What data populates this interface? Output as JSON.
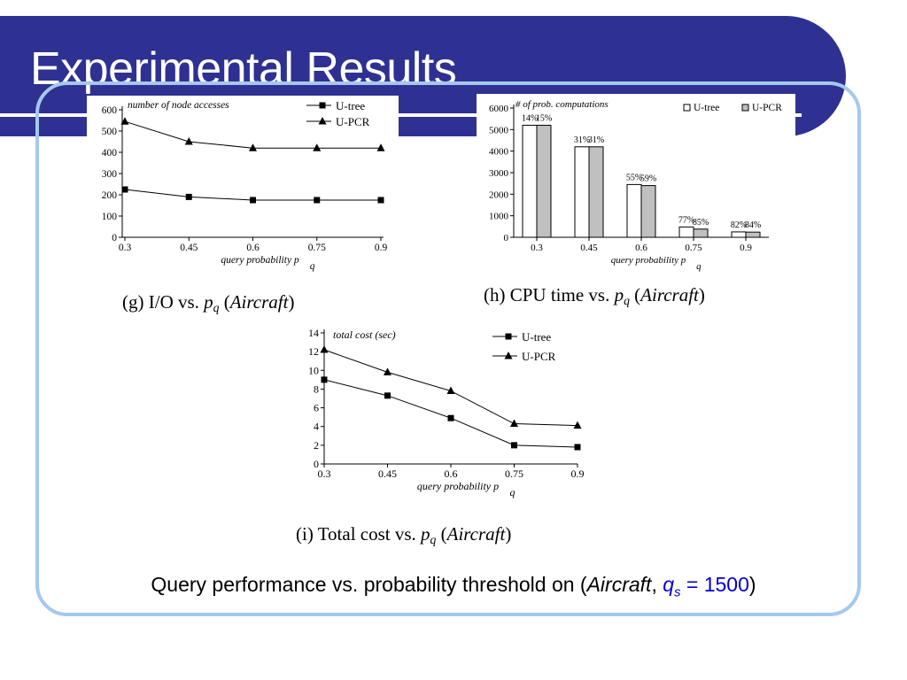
{
  "slide": {
    "title": "Experimental Results",
    "caption_main": "Query performance vs. probability threshold on (",
    "caption_italic": "Aircraft",
    "caption_sep": ", ",
    "caption_var": "q",
    "caption_sub": "s",
    "caption_eq": " = 1500",
    "caption_close": ")",
    "colors": {
      "title_bar": "#2e3192",
      "frame": "#a5c8ef",
      "caption_highlight": "#0000cc"
    }
  },
  "chart_data": [
    {
      "id": "g",
      "type": "line",
      "title": "number of node accesses",
      "caption": "(g) I/O vs. p",
      "caption_sub": "q",
      "caption_italic": "Aircraft",
      "xlabel": "query probability p",
      "xlabel_sub": "q",
      "ylabel": "",
      "categories": [
        "0.3",
        "0.45",
        "0.6",
        "0.75",
        "0.9"
      ],
      "ylim": [
        0,
        600
      ],
      "yticks": [
        0,
        100,
        200,
        300,
        400,
        500,
        600
      ],
      "legend_position": "top-right",
      "series": [
        {
          "name": "U-tree",
          "marker": "square",
          "values": [
            225,
            190,
            175,
            175,
            175
          ]
        },
        {
          "name": "U-PCR",
          "marker": "triangle",
          "values": [
            545,
            450,
            420,
            420,
            420
          ]
        }
      ]
    },
    {
      "id": "h",
      "type": "bar",
      "title": "# of prob. computations",
      "caption": "(h) CPU time vs. p",
      "caption_sub": "q",
      "caption_italic": "Aircraft",
      "xlabel": "query probability p",
      "xlabel_sub": "q",
      "ylabel": "",
      "categories": [
        "0.3",
        "0.45",
        "0.6",
        "0.75",
        "0.9"
      ],
      "ylim": [
        0,
        6000
      ],
      "yticks": [
        0,
        1000,
        2000,
        3000,
        4000,
        5000,
        6000
      ],
      "legend_position": "top-right",
      "series": [
        {
          "name": "U-tree",
          "fill": "#ffffff",
          "values": [
            5200,
            4200,
            2450,
            480,
            250
          ],
          "labels": [
            "14%",
            "31%",
            "55%",
            "77%",
            "82%"
          ]
        },
        {
          "name": "U-PCR",
          "fill": "#c0c0c0",
          "values": [
            5200,
            4200,
            2400,
            380,
            240
          ],
          "labels": [
            "15%",
            "31%",
            "59%",
            "85%",
            "84%"
          ]
        }
      ]
    },
    {
      "id": "i",
      "type": "line",
      "title": "total cost (sec)",
      "caption": "(i) Total cost vs. p",
      "caption_sub": "q",
      "caption_italic": "Aircraft",
      "xlabel": "query probability p",
      "xlabel_sub": "q",
      "ylabel": "",
      "categories": [
        "0.3",
        "0.45",
        "0.6",
        "0.75",
        "0.9"
      ],
      "ylim": [
        0,
        14
      ],
      "yticks": [
        0,
        2,
        4,
        6,
        8,
        10,
        12,
        14
      ],
      "legend_position": "top-right",
      "series": [
        {
          "name": "U-tree",
          "marker": "square",
          "values": [
            9.0,
            7.3,
            4.9,
            2.0,
            1.8
          ]
        },
        {
          "name": "U-PCR",
          "marker": "triangle",
          "values": [
            12.2,
            9.8,
            7.8,
            4.3,
            4.1
          ]
        }
      ]
    }
  ]
}
